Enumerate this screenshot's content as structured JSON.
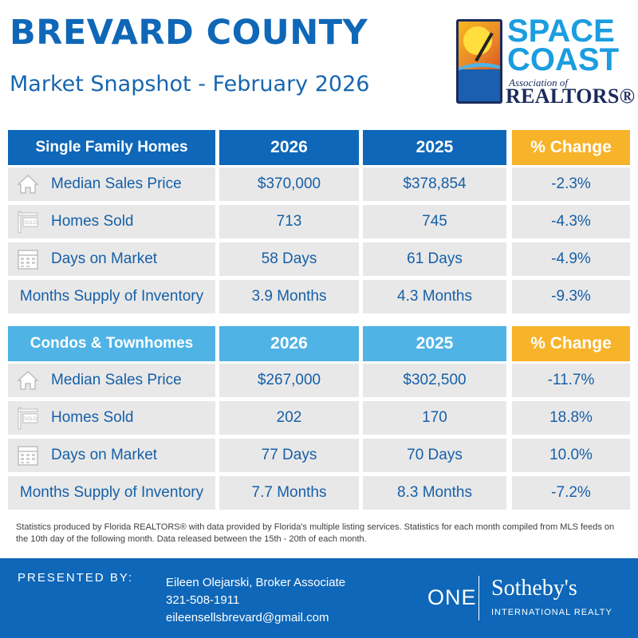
{
  "header": {
    "title": "BREVARD COUNTY",
    "subtitle": "Market Snapshot - February 2026"
  },
  "logo": {
    "line1": "SPACE",
    "line2": "COAST",
    "line3": "Association of",
    "line4": "REALTORS®",
    "colors": {
      "blue": "#1b9de0",
      "navy": "#1b2b5c",
      "orange": "#f5b01e"
    }
  },
  "colors": {
    "primary_header": "#0e67b8",
    "secondary_header": "#4fb3e6",
    "change_header": "#f7b32a",
    "row_background": "#e9e8e8",
    "text_blue": "#1560a8"
  },
  "single_family": {
    "heading": "Single Family Homes",
    "col_2026": "2026",
    "col_2025": "2025",
    "col_change": "% Change",
    "rows": [
      {
        "icon": "house-icon",
        "label": "Median Sales Price",
        "v2026": "$370,000",
        "v2025": "$378,854",
        "change": "-2.3%"
      },
      {
        "icon": "sold-sign-icon",
        "label": "Homes Sold",
        "v2026": "713",
        "v2025": "745",
        "change": "-4.3%"
      },
      {
        "icon": "calendar-icon",
        "label": "Days on Market",
        "v2026": "58 Days",
        "v2025": "61 Days",
        "change": "-4.9%"
      },
      {
        "icon": "",
        "label": "Months Supply of Inventory",
        "v2026": "3.9 Months",
        "v2025": "4.3 Months",
        "change": "-9.3%"
      }
    ]
  },
  "condos": {
    "heading": "Condos & Townhomes",
    "col_2026": "2026",
    "col_2025": "2025",
    "col_change": "% Change",
    "rows": [
      {
        "icon": "house-icon",
        "label": "Median Sales Price",
        "v2026": "$267,000",
        "v2025": "$302,500",
        "change": "-11.7%"
      },
      {
        "icon": "sold-sign-icon",
        "label": "Homes Sold",
        "v2026": "202",
        "v2025": "170",
        "change": "18.8%"
      },
      {
        "icon": "calendar-icon",
        "label": "Days on Market",
        "v2026": "77 Days",
        "v2025": "70 Days",
        "change": "10.0%"
      },
      {
        "icon": "",
        "label": "Months Supply of Inventory",
        "v2026": "7.7 Months",
        "v2025": "8.3 Months",
        "change": "-7.2%"
      }
    ]
  },
  "footnote": "Statistics produced by Florida REALTORS® with data provided by Florida's multiple listing services. Statistics for each month compiled from MLS feeds on the 10th day of the following month. Data released between the 15th - 20th of each month.",
  "footer": {
    "presented_by": "PRESENTED BY:",
    "agent_name": "Eileen Olejarski, Broker Associate",
    "phone": "321-508-1911",
    "email": "eileensellsbrevard@gmail.com",
    "brand_one": "ONE",
    "brand_name": "Sotheby's",
    "brand_sub": "INTERNATIONAL REALTY"
  }
}
